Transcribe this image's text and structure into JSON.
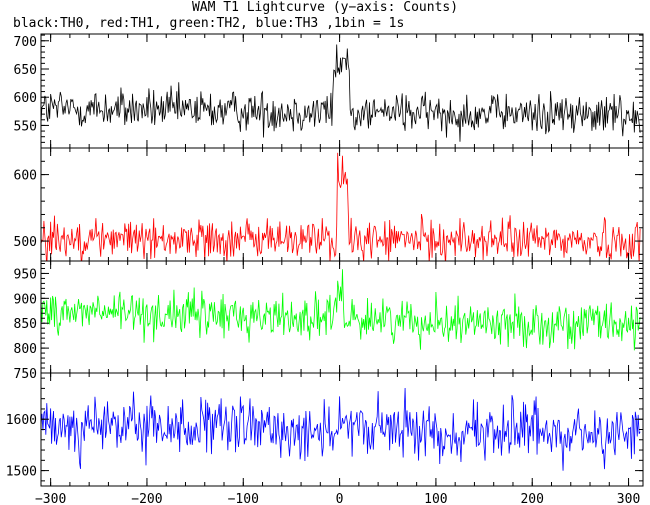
{
  "chart_data": {
    "type": "line",
    "title": "WAM T1 Lightcurve (y−axis: Counts)",
    "subtitle": "black:TH0, red:TH1, green:TH2, blue:TH3 ,1bin = 1s",
    "xlim": [
      -310,
      315
    ],
    "xticks": [
      -300,
      -200,
      -100,
      0,
      100,
      200,
      300
    ],
    "xtick_labels": [
      "−300",
      "−200",
      "−100",
      "0",
      "100",
      "200",
      "300"
    ],
    "x_step": 1,
    "grid": false,
    "panels": [
      {
        "name": "TH0",
        "color": "#000000",
        "ylim": [
          510,
          712
        ],
        "yticks": [
          550,
          600,
          650,
          700
        ],
        "ytick_labels": [
          "550",
          "600",
          "650",
          "700"
        ],
        "baseline": 580,
        "noise": 26,
        "trend": -12,
        "burst": [
          {
            "x0": -6,
            "x1": 10,
            "peak": 680
          }
        ]
      },
      {
        "name": "TH1",
        "color": "#ff0000",
        "ylim": [
          470,
          640
        ],
        "yticks": [
          500,
          600
        ],
        "ytick_labels": [
          "500",
          "600"
        ],
        "baseline": 505,
        "noise": 22,
        "trend": -5,
        "burst": [
          {
            "x0": -2,
            "x1": 8,
            "peak": 610
          }
        ]
      },
      {
        "name": "TH2",
        "color": "#00ff00",
        "ylim": [
          750,
          975
        ],
        "yticks": [
          750,
          800,
          850,
          900,
          950
        ],
        "ytick_labels": [
          "750",
          "800",
          "850",
          "900",
          "950"
        ],
        "baseline": 875,
        "noise": 32,
        "trend": -30,
        "burst": [
          {
            "x0": -2,
            "x1": 4,
            "peak": 940
          }
        ]
      },
      {
        "name": "TH3",
        "color": "#0000ff",
        "ylim": [
          1470,
          1690
        ],
        "yticks": [
          1500,
          1600
        ],
        "ytick_labels": [
          "1500",
          "1600"
        ],
        "baseline": 1588,
        "noise": 40,
        "trend": -15,
        "burst": []
      }
    ]
  }
}
